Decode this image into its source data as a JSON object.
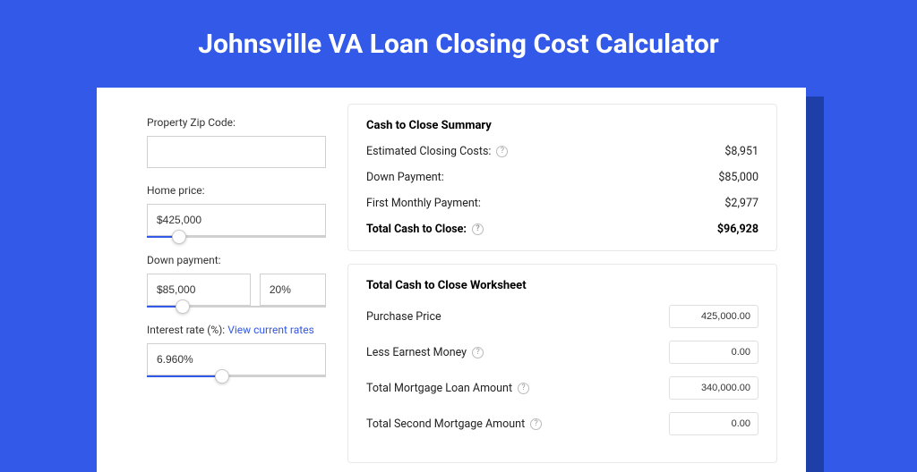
{
  "colors": {
    "page_bg": "#3259e8",
    "card_shadow": "#1e3fa8",
    "card_bg": "#ffffff",
    "border": "#d0d0d0",
    "slider_fill": "#3259e8",
    "text": "#333333",
    "link": "#3259e8"
  },
  "page": {
    "title": "Johnsville VA Loan Closing Cost Calculator"
  },
  "inputs": {
    "zip": {
      "label": "Property Zip Code:",
      "value": ""
    },
    "home_price": {
      "label": "Home price:",
      "value": "$425,000",
      "slider_pct": 18
    },
    "down_payment": {
      "label": "Down payment:",
      "value": "$85,000",
      "pct": "20%",
      "slider_pct": 20
    },
    "interest": {
      "label_prefix": "Interest rate (%): ",
      "link_text": "View current rates",
      "value": "6.960%",
      "slider_pct": 42
    }
  },
  "summary": {
    "title": "Cash to Close Summary",
    "rows": [
      {
        "label": "Estimated Closing Costs:",
        "help": true,
        "value": "$8,951",
        "bold": false
      },
      {
        "label": "Down Payment:",
        "help": false,
        "value": "$85,000",
        "bold": false
      },
      {
        "label": "First Monthly Payment:",
        "help": false,
        "value": "$2,977",
        "bold": false
      },
      {
        "label": "Total Cash to Close:",
        "help": true,
        "value": "$96,928",
        "bold": true
      }
    ]
  },
  "worksheet": {
    "title": "Total Cash to Close Worksheet",
    "rows": [
      {
        "label": "Purchase Price",
        "help": false,
        "value": "425,000.00"
      },
      {
        "label": "Less Earnest Money",
        "help": true,
        "value": "0.00"
      },
      {
        "label": "Total Mortgage Loan Amount",
        "help": true,
        "value": "340,000.00"
      },
      {
        "label": "Total Second Mortgage Amount",
        "help": true,
        "value": "0.00"
      }
    ]
  }
}
